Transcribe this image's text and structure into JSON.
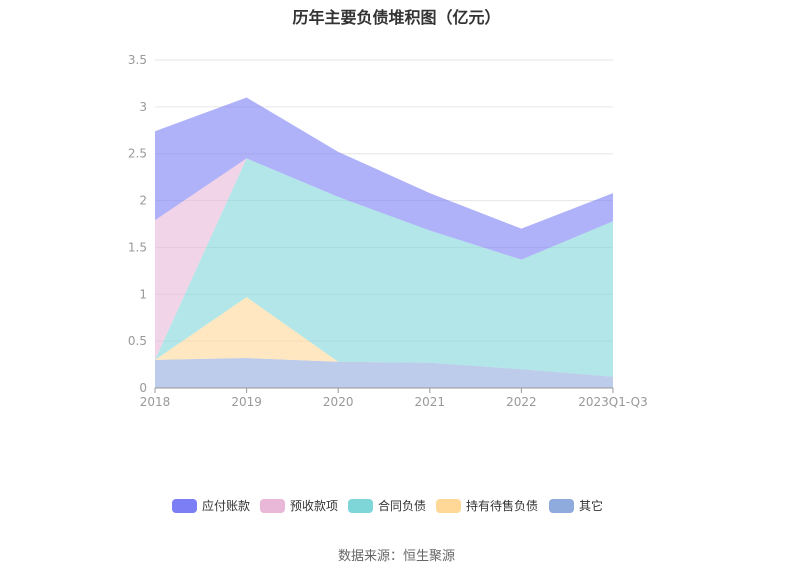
{
  "chart_data": {
    "type": "area",
    "stacked": true,
    "title": "历年主要负债堆积图（亿元）",
    "xlabel": "",
    "ylabel": "",
    "categories": [
      "2018",
      "2019",
      "2020",
      "2021",
      "2022",
      "2023Q1-Q3"
    ],
    "ylim": [
      0,
      3.5
    ],
    "yticks": [
      "0",
      "0.5",
      "1",
      "1.5",
      "2",
      "2.5",
      "3",
      "3.5"
    ],
    "grid": true,
    "legend_position": "bottom-center",
    "series": [
      {
        "name": "其它",
        "color": "#8faadc",
        "values": [
          0.3,
          0.32,
          0.28,
          0.27,
          0.2,
          0.12
        ]
      },
      {
        "name": "持有待售负债",
        "color": "#ffd898",
        "values": [
          0.0,
          0.65,
          0.0,
          0.0,
          0.0,
          0.0
        ]
      },
      {
        "name": "合同负债",
        "color": "#7fd6d9",
        "values": [
          0.0,
          1.48,
          1.76,
          1.41,
          1.17,
          1.66
        ]
      },
      {
        "name": "预收款项",
        "color": "#e9b7d8",
        "values": [
          1.49,
          0.0,
          0.0,
          0.0,
          0.0,
          0.0
        ]
      },
      {
        "name": "应付账款",
        "color": "#7b7ef5",
        "values": [
          0.95,
          0.65,
          0.48,
          0.4,
          0.33,
          0.3
        ]
      }
    ],
    "legend_order": [
      "应付账款",
      "预收款项",
      "合同负债",
      "持有待售负债",
      "其它"
    ]
  },
  "source": "数据来源：恒生聚源"
}
